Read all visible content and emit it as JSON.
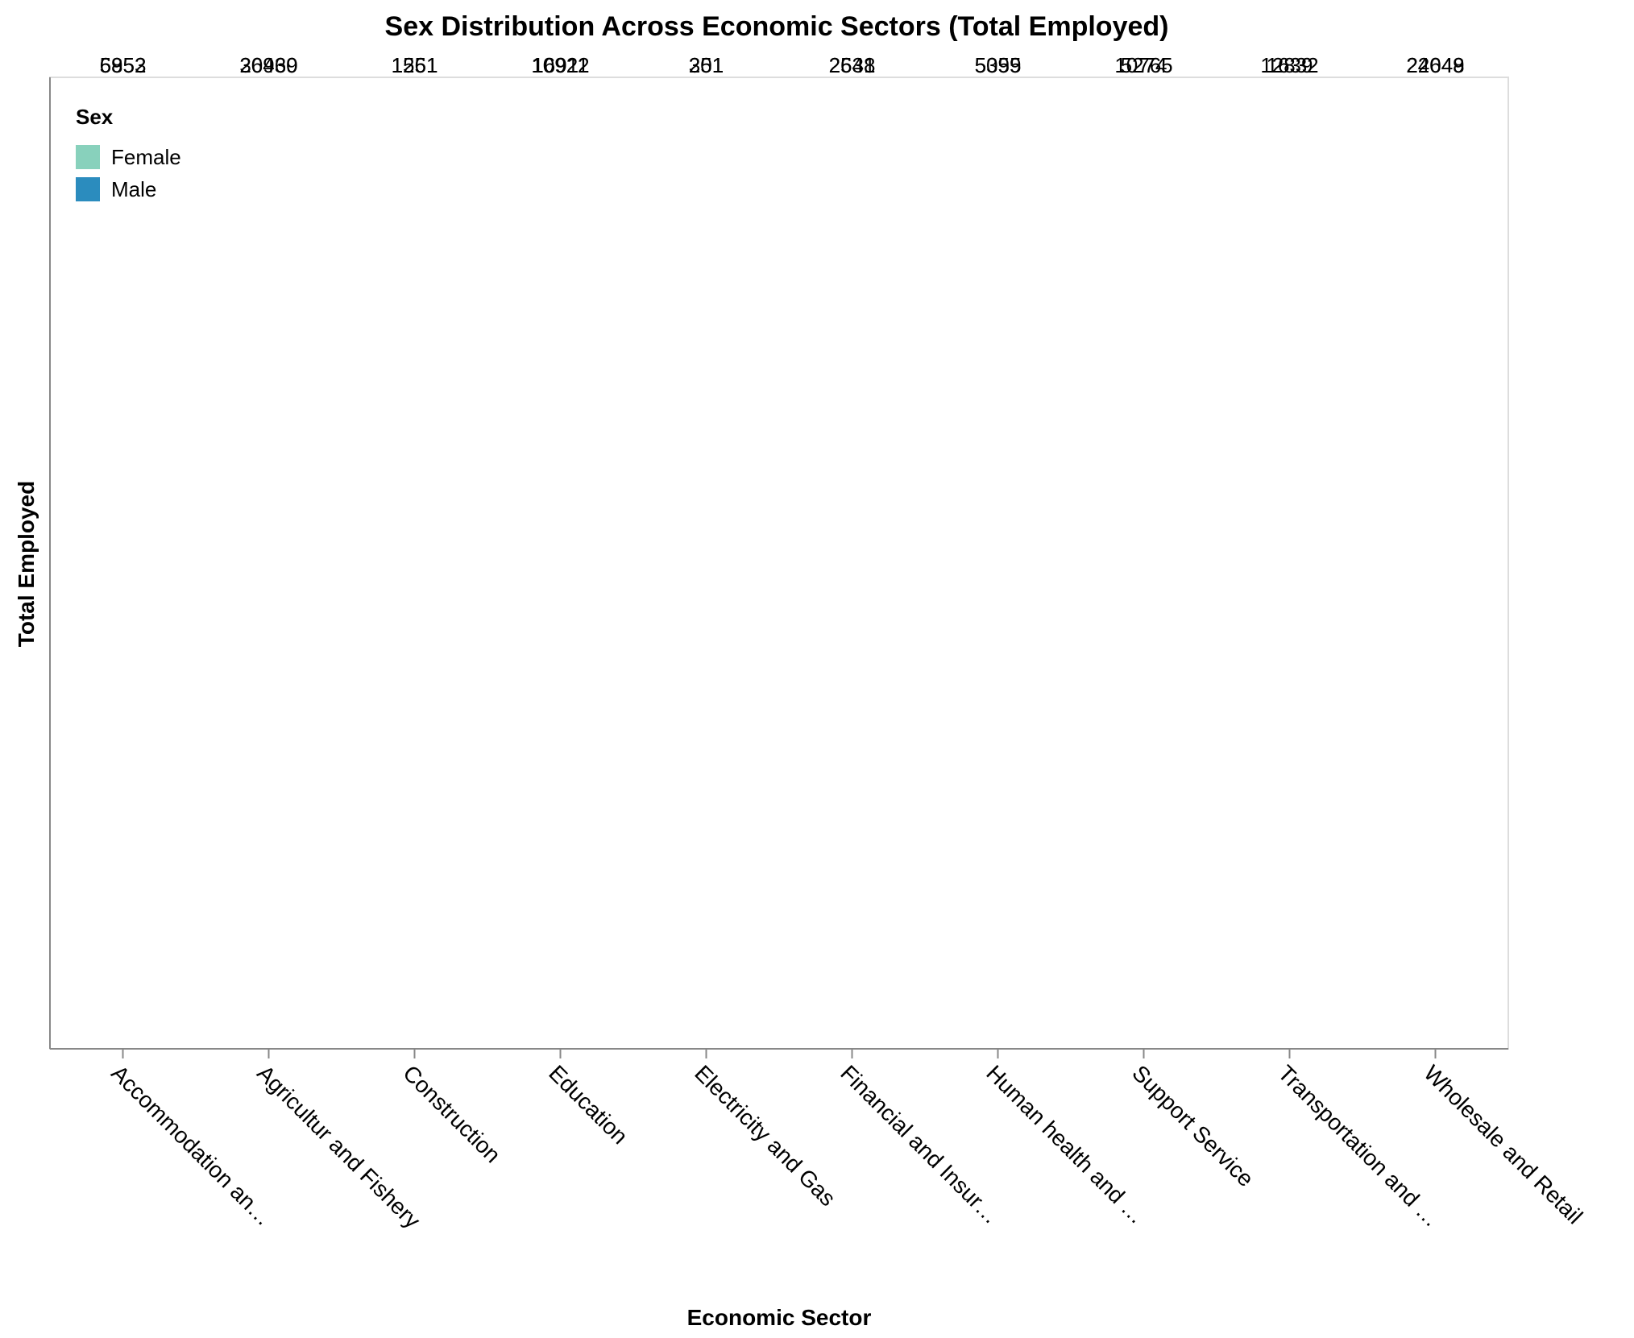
{
  "chart_data": {
    "type": "bar",
    "title": "Sex Distribution Across Economic Sectors (Total Employed)",
    "xlabel": "Economic Sector",
    "ylabel": "Total Employed",
    "categories": [
      "Accommodation an…",
      "Agricultur and Fishery",
      "Construction",
      "Education",
      "Electricity and Gas",
      "Financial and Insur…",
      "Human health and …",
      "Support Service",
      "Transportation and …",
      "Wholesale and Retail"
    ],
    "series": [
      {
        "name": "Female",
        "color": "#88d1bc",
        "values": [
          6952,
          30460,
          1251,
          10922,
          201,
          2631,
          5059,
          10765,
          1639,
          22649
        ]
      },
      {
        "name": "Male",
        "color": "#2b8cbe",
        "values": [
          5853,
          26939,
          1561,
          16911,
          351,
          2548,
          5395,
          5274,
          12832,
          24048
        ]
      }
    ],
    "legend": {
      "title": "Sex",
      "position": "top-left"
    },
    "grid": false,
    "label_position": "top"
  }
}
